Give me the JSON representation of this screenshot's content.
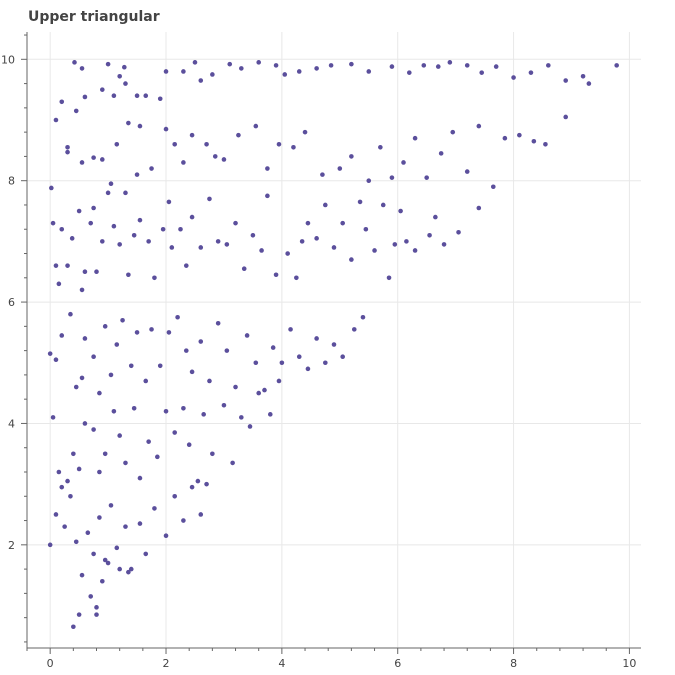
{
  "chart_data": {
    "type": "scatter",
    "title": "Upper triangular",
    "xlabel": "",
    "ylabel": "",
    "xlim": [
      -0.4,
      10.2
    ],
    "ylim": [
      0.3,
      10.45
    ],
    "xticks": [
      "0",
      "2",
      "4",
      "6",
      "8",
      "10"
    ],
    "yticks": [
      "2",
      "4",
      "6",
      "8",
      "10"
    ],
    "grid": true,
    "marker_color": "#5b4f9c",
    "points": [
      [
        0.02,
        7.88
      ],
      [
        0.1,
        9.0
      ],
      [
        0.2,
        9.3
      ],
      [
        0.3,
        8.47
      ],
      [
        0.42,
        9.95
      ],
      [
        0.55,
        9.85
      ],
      [
        0.45,
        9.15
      ],
      [
        0.6,
        9.38
      ],
      [
        0.9,
        9.5
      ],
      [
        1.0,
        9.92
      ],
      [
        1.1,
        9.4
      ],
      [
        1.2,
        9.72
      ],
      [
        1.28,
        9.87
      ],
      [
        1.3,
        9.6
      ],
      [
        1.5,
        9.4
      ],
      [
        1.55,
        8.9
      ],
      [
        1.65,
        9.4
      ],
      [
        1.9,
        9.35
      ],
      [
        2.0,
        9.8
      ],
      [
        2.3,
        9.8
      ],
      [
        2.5,
        9.95
      ],
      [
        2.6,
        9.65
      ],
      [
        2.8,
        9.75
      ],
      [
        3.1,
        9.92
      ],
      [
        3.3,
        9.85
      ],
      [
        3.6,
        9.95
      ],
      [
        3.9,
        9.9
      ],
      [
        4.05,
        9.75
      ],
      [
        4.3,
        9.8
      ],
      [
        4.6,
        9.85
      ],
      [
        4.85,
        9.9
      ],
      [
        5.2,
        9.92
      ],
      [
        5.5,
        9.8
      ],
      [
        5.9,
        9.88
      ],
      [
        6.2,
        9.78
      ],
      [
        6.45,
        9.9
      ],
      [
        6.7,
        9.88
      ],
      [
        6.9,
        9.95
      ],
      [
        7.2,
        9.9
      ],
      [
        7.45,
        9.78
      ],
      [
        7.7,
        9.88
      ],
      [
        8.0,
        9.7
      ],
      [
        8.3,
        9.78
      ],
      [
        8.6,
        9.9
      ],
      [
        8.9,
        9.65
      ],
      [
        9.2,
        9.72
      ],
      [
        9.3,
        9.6
      ],
      [
        9.78,
        9.9
      ],
      [
        0.05,
        7.3
      ],
      [
        0.1,
        6.6
      ],
      [
        0.15,
        6.3
      ],
      [
        0.2,
        7.2
      ],
      [
        0.3,
        6.6
      ],
      [
        0.38,
        7.05
      ],
      [
        0.5,
        7.5
      ],
      [
        0.55,
        6.2
      ],
      [
        0.6,
        6.5
      ],
      [
        0.7,
        7.3
      ],
      [
        0.75,
        7.55
      ],
      [
        0.8,
        6.5
      ],
      [
        0.9,
        7.0
      ],
      [
        1.0,
        7.8
      ],
      [
        1.1,
        7.25
      ],
      [
        1.2,
        6.95
      ],
      [
        1.3,
        7.8
      ],
      [
        1.35,
        6.45
      ],
      [
        1.45,
        7.1
      ],
      [
        1.55,
        7.35
      ],
      [
        1.7,
        7.0
      ],
      [
        1.8,
        6.4
      ],
      [
        1.95,
        7.2
      ],
      [
        2.05,
        7.65
      ],
      [
        2.1,
        6.9
      ],
      [
        2.25,
        7.2
      ],
      [
        2.35,
        6.6
      ],
      [
        2.45,
        7.4
      ],
      [
        2.6,
        6.9
      ],
      [
        2.75,
        7.7
      ],
      [
        2.9,
        7.0
      ],
      [
        3.05,
        6.95
      ],
      [
        3.2,
        7.3
      ],
      [
        3.35,
        6.55
      ],
      [
        3.5,
        7.1
      ],
      [
        3.65,
        6.85
      ],
      [
        3.75,
        7.75
      ],
      [
        3.9,
        6.45
      ],
      [
        4.1,
        6.8
      ],
      [
        4.25,
        6.4
      ],
      [
        4.35,
        7.0
      ],
      [
        4.45,
        7.3
      ],
      [
        4.6,
        7.05
      ],
      [
        4.75,
        7.6
      ],
      [
        4.9,
        6.9
      ],
      [
        5.05,
        7.3
      ],
      [
        5.2,
        6.7
      ],
      [
        5.35,
        7.65
      ],
      [
        5.45,
        7.2
      ],
      [
        5.6,
        6.85
      ],
      [
        5.75,
        7.6
      ],
      [
        5.85,
        6.4
      ],
      [
        5.95,
        6.95
      ],
      [
        6.05,
        7.5
      ],
      [
        6.15,
        7.0
      ],
      [
        6.3,
        6.85
      ],
      [
        6.55,
        7.1
      ],
      [
        6.65,
        7.4
      ],
      [
        6.8,
        6.95
      ],
      [
        7.05,
        7.15
      ],
      [
        7.4,
        7.55
      ],
      [
        0.3,
        8.55
      ],
      [
        0.55,
        8.3
      ],
      [
        0.75,
        8.38
      ],
      [
        0.9,
        8.35
      ],
      [
        1.05,
        7.95
      ],
      [
        1.15,
        8.6
      ],
      [
        1.35,
        8.95
      ],
      [
        1.5,
        8.1
      ],
      [
        1.75,
        8.2
      ],
      [
        2.0,
        8.85
      ],
      [
        2.15,
        8.6
      ],
      [
        2.3,
        8.3
      ],
      [
        2.45,
        8.75
      ],
      [
        2.7,
        8.6
      ],
      [
        2.85,
        8.4
      ],
      [
        3.0,
        8.35
      ],
      [
        3.25,
        8.75
      ],
      [
        3.55,
        8.9
      ],
      [
        3.75,
        8.2
      ],
      [
        3.95,
        8.6
      ],
      [
        4.2,
        8.55
      ],
      [
        4.4,
        8.8
      ],
      [
        4.7,
        8.1
      ],
      [
        5.0,
        8.2
      ],
      [
        5.2,
        8.4
      ],
      [
        5.5,
        8.0
      ],
      [
        5.7,
        8.55
      ],
      [
        5.9,
        8.05
      ],
      [
        6.1,
        8.3
      ],
      [
        6.3,
        8.7
      ],
      [
        6.5,
        8.05
      ],
      [
        6.75,
        8.45
      ],
      [
        6.95,
        8.8
      ],
      [
        7.2,
        8.15
      ],
      [
        7.4,
        8.9
      ],
      [
        7.65,
        7.9
      ],
      [
        7.85,
        8.7
      ],
      [
        8.1,
        8.75
      ],
      [
        8.35,
        8.65
      ],
      [
        8.55,
        8.6
      ],
      [
        8.9,
        9.05
      ],
      [
        0.0,
        5.15
      ],
      [
        0.1,
        5.05
      ],
      [
        0.2,
        5.45
      ],
      [
        0.35,
        5.8
      ],
      [
        0.45,
        4.6
      ],
      [
        0.55,
        4.75
      ],
      [
        0.6,
        5.4
      ],
      [
        0.75,
        5.1
      ],
      [
        0.85,
        4.5
      ],
      [
        0.95,
        5.6
      ],
      [
        1.05,
        4.8
      ],
      [
        1.15,
        5.3
      ],
      [
        1.25,
        5.7
      ],
      [
        1.4,
        4.95
      ],
      [
        1.5,
        5.5
      ],
      [
        1.65,
        4.7
      ],
      [
        1.75,
        5.55
      ],
      [
        1.9,
        4.95
      ],
      [
        2.05,
        5.5
      ],
      [
        2.2,
        5.75
      ],
      [
        2.35,
        5.2
      ],
      [
        2.45,
        4.85
      ],
      [
        2.6,
        5.35
      ],
      [
        2.75,
        4.7
      ],
      [
        2.9,
        5.65
      ],
      [
        3.05,
        5.2
      ],
      [
        3.2,
        4.6
      ],
      [
        3.4,
        5.45
      ],
      [
        3.55,
        5.0
      ],
      [
        3.7,
        4.55
      ],
      [
        3.85,
        5.25
      ],
      [
        4.0,
        5.0
      ],
      [
        4.15,
        5.55
      ],
      [
        4.3,
        5.1
      ],
      [
        4.45,
        4.9
      ],
      [
        4.6,
        5.4
      ],
      [
        4.75,
        5.0
      ],
      [
        4.9,
        5.3
      ],
      [
        5.05,
        5.1
      ],
      [
        5.25,
        5.55
      ],
      [
        5.4,
        5.75
      ],
      [
        0.05,
        4.1
      ],
      [
        0.15,
        3.2
      ],
      [
        0.3,
        3.05
      ],
      [
        0.4,
        3.5
      ],
      [
        0.5,
        3.25
      ],
      [
        0.6,
        4.0
      ],
      [
        0.75,
        3.9
      ],
      [
        0.85,
        3.2
      ],
      [
        0.95,
        3.5
      ],
      [
        1.1,
        4.2
      ],
      [
        1.2,
        3.8
      ],
      [
        1.3,
        3.35
      ],
      [
        1.45,
        4.25
      ],
      [
        1.55,
        3.1
      ],
      [
        1.7,
        3.7
      ],
      [
        1.85,
        3.45
      ],
      [
        2.0,
        4.2
      ],
      [
        2.15,
        3.85
      ],
      [
        2.3,
        4.25
      ],
      [
        2.4,
        3.65
      ],
      [
        2.55,
        3.05
      ],
      [
        2.65,
        4.15
      ],
      [
        2.8,
        3.5
      ],
      [
        3.0,
        4.3
      ],
      [
        3.15,
        3.35
      ],
      [
        3.3,
        4.1
      ],
      [
        3.45,
        3.95
      ],
      [
        3.6,
        4.5
      ],
      [
        3.8,
        4.15
      ],
      [
        3.95,
        4.7
      ],
      [
        0.0,
        2.0
      ],
      [
        0.1,
        2.5
      ],
      [
        0.2,
        2.95
      ],
      [
        0.25,
        2.3
      ],
      [
        0.35,
        2.8
      ],
      [
        0.45,
        2.05
      ],
      [
        0.55,
        1.5
      ],
      [
        0.65,
        2.2
      ],
      [
        0.75,
        1.85
      ],
      [
        0.85,
        2.45
      ],
      [
        0.95,
        1.75
      ],
      [
        1.05,
        2.65
      ],
      [
        1.15,
        1.95
      ],
      [
        1.3,
        2.3
      ],
      [
        1.4,
        1.6
      ],
      [
        1.55,
        2.35
      ],
      [
        1.65,
        1.85
      ],
      [
        1.8,
        2.6
      ],
      [
        2.0,
        2.15
      ],
      [
        2.15,
        2.8
      ],
      [
        2.3,
        2.4
      ],
      [
        2.45,
        2.95
      ],
      [
        2.6,
        2.5
      ],
      [
        2.7,
        3.0
      ],
      [
        0.4,
        0.65
      ],
      [
        0.5,
        0.85
      ],
      [
        0.7,
        1.15
      ],
      [
        0.8,
        0.85
      ],
      [
        0.8,
        0.97
      ],
      [
        0.9,
        1.4
      ],
      [
        1.0,
        1.7
      ],
      [
        1.2,
        1.6
      ],
      [
        1.35,
        1.55
      ]
    ]
  }
}
